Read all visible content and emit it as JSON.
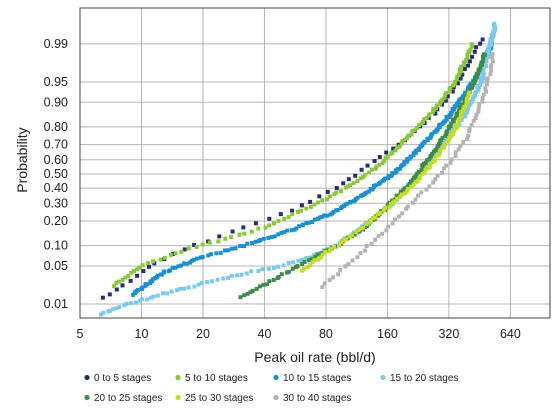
{
  "chart_data": {
    "type": "scatter",
    "xlabel": "Peak oil rate (bbl/d)",
    "ylabel": "Probability",
    "x_scale": "log",
    "y_scale": "normal-probability",
    "xlim": [
      5,
      1000
    ],
    "ylim": [
      0.005,
      0.9985
    ],
    "x_ticks": [
      5,
      10,
      20,
      40,
      80,
      160,
      320,
      640
    ],
    "y_ticks": [
      0.01,
      0.05,
      0.1,
      0.2,
      0.3,
      0.4,
      0.5,
      0.6,
      0.7,
      0.8,
      0.9,
      0.95,
      0.99
    ],
    "x_tick_labels": [
      "5",
      "10",
      "20",
      "40",
      "80",
      "160",
      "320",
      "640"
    ],
    "y_tick_labels": [
      "0.01",
      "0.05",
      "0.10",
      "0.20",
      "0.30",
      "0.40",
      "0.50",
      "0.60",
      "0.70",
      "0.80",
      "0.90",
      "0.95",
      "0.99"
    ],
    "grid": true,
    "legend_position": "bottom",
    "series": [
      {
        "name": "0 to 5 stages",
        "color": "#27306b",
        "n": 60,
        "knots": [
          [
            6.2,
            0.012
          ],
          [
            9,
            0.03
          ],
          [
            12,
            0.06
          ],
          [
            18,
            0.1
          ],
          [
            30,
            0.16
          ],
          [
            55,
            0.26
          ],
          [
            90,
            0.4
          ],
          [
            130,
            0.56
          ],
          [
            200,
            0.74
          ],
          [
            280,
            0.87
          ],
          [
            330,
            0.93
          ],
          [
            380,
            0.965
          ],
          [
            470,
            0.993
          ]
        ]
      },
      {
        "name": "5 to 10 stages",
        "color": "#8cc63f",
        "n": 120,
        "knots": [
          [
            7.2,
            0.022
          ],
          [
            10,
            0.05
          ],
          [
            15,
            0.08
          ],
          [
            25,
            0.12
          ],
          [
            40,
            0.17
          ],
          [
            65,
            0.27
          ],
          [
            100,
            0.4
          ],
          [
            145,
            0.56
          ],
          [
            200,
            0.74
          ],
          [
            260,
            0.86
          ],
          [
            320,
            0.93
          ],
          [
            360,
            0.965
          ],
          [
            420,
            0.99
          ]
        ]
      },
      {
        "name": "10 to 15 stages",
        "color": "#1c8fcf",
        "n": 230,
        "knots": [
          [
            9,
            0.015
          ],
          [
            13,
            0.04
          ],
          [
            20,
            0.07
          ],
          [
            32,
            0.1
          ],
          [
            55,
            0.16
          ],
          [
            85,
            0.24
          ],
          [
            120,
            0.35
          ],
          [
            170,
            0.5
          ],
          [
            230,
            0.68
          ],
          [
            300,
            0.82
          ],
          [
            380,
            0.92
          ],
          [
            450,
            0.965
          ],
          [
            520,
            0.99
          ]
        ]
      },
      {
        "name": "15 to 20 stages",
        "color": "#7ec8ec",
        "n": 250,
        "knots": [
          [
            6.2,
            0.006
          ],
          [
            8,
            0.009
          ],
          [
            12,
            0.015
          ],
          [
            20,
            0.025
          ],
          [
            35,
            0.04
          ],
          [
            60,
            0.06
          ],
          [
            90,
            0.1
          ],
          [
            120,
            0.17
          ],
          [
            170,
            0.3
          ],
          [
            230,
            0.5
          ],
          [
            300,
            0.7
          ],
          [
            380,
            0.85
          ],
          [
            460,
            0.95
          ],
          [
            540,
            0.9965
          ]
        ]
      },
      {
        "name": "20 to 25 stages",
        "color": "#3e8a4a",
        "n": 140,
        "knots": [
          [
            30,
            0.013
          ],
          [
            45,
            0.03
          ],
          [
            65,
            0.06
          ],
          [
            90,
            0.1
          ],
          [
            120,
            0.16
          ],
          [
            160,
            0.28
          ],
          [
            210,
            0.45
          ],
          [
            260,
            0.62
          ],
          [
            320,
            0.79
          ],
          [
            380,
            0.9
          ],
          [
            440,
            0.96
          ],
          [
            480,
            0.985
          ]
        ]
      },
      {
        "name": "25 to 30 stages",
        "color": "#c4dd2a",
        "n": 90,
        "knots": [
          [
            60,
            0.04
          ],
          [
            80,
            0.08
          ],
          [
            105,
            0.13
          ],
          [
            140,
            0.22
          ],
          [
            185,
            0.34
          ],
          [
            240,
            0.5
          ],
          [
            290,
            0.65
          ],
          [
            340,
            0.78
          ],
          [
            380,
            0.88
          ],
          [
            410,
            0.93
          ]
        ]
      },
      {
        "name": "30 to 40 stages",
        "color": "#b3b3b3",
        "n": 70,
        "knots": [
          [
            75,
            0.02
          ],
          [
            100,
            0.05
          ],
          [
            130,
            0.1
          ],
          [
            165,
            0.18
          ],
          [
            210,
            0.3
          ],
          [
            270,
            0.45
          ],
          [
            330,
            0.6
          ],
          [
            390,
            0.74
          ],
          [
            440,
            0.86
          ],
          [
            490,
            0.94
          ],
          [
            530,
            0.985
          ]
        ]
      }
    ]
  }
}
